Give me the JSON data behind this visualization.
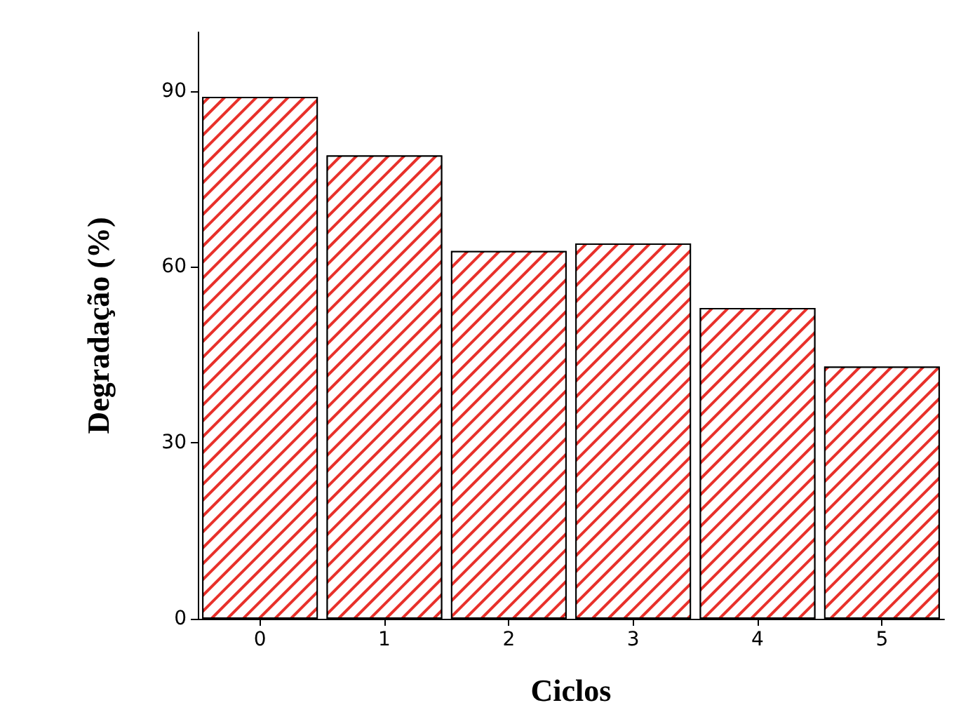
{
  "chart_data": {
    "type": "bar",
    "xlabel": "Ciclos",
    "ylabel": "Degradação (%)",
    "categories": [
      "0",
      "1",
      "2",
      "3",
      "4",
      "5"
    ],
    "series": [
      {
        "color": "#e8302a",
        "values": [
          89,
          79,
          62.7,
          64,
          53,
          43
        ]
      }
    ],
    "ylim": [
      0,
      100
    ],
    "yticks": [
      0,
      30,
      60,
      90
    ],
    "grid": false
  }
}
